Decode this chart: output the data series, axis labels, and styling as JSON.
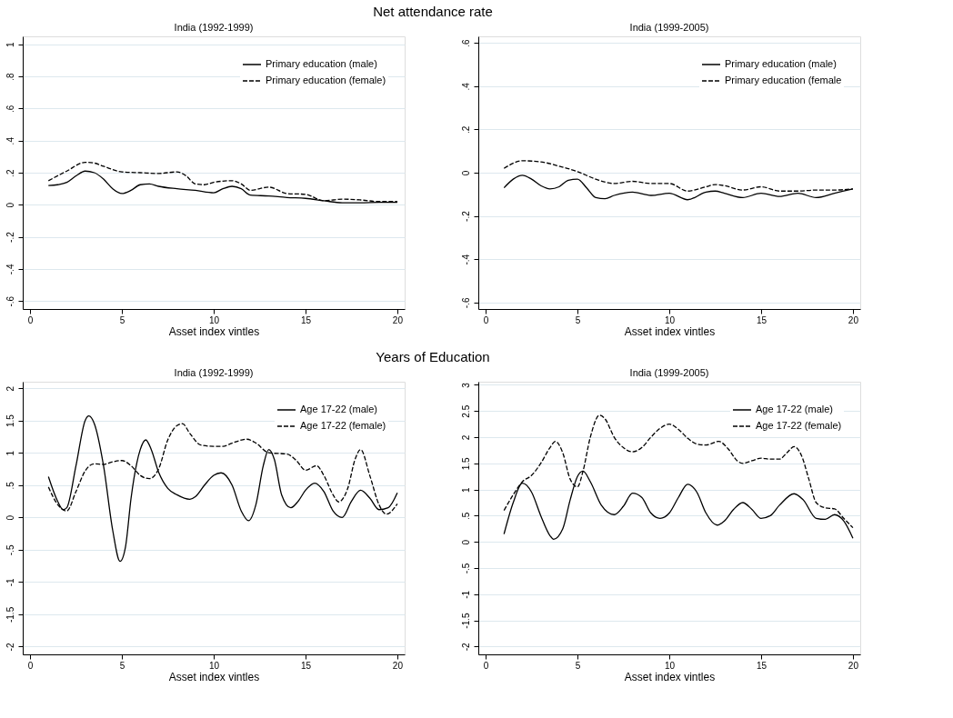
{
  "chart_data": [
    {
      "type": "line",
      "title": "India (1992-1999)",
      "annotations": [
        "Net attendance rate"
      ],
      "xlabel": "Asset index vintles",
      "xlim": [
        -0.4,
        20.4
      ],
      "xticks": [
        0,
        5,
        10,
        15,
        20
      ],
      "ylim": [
        -0.65,
        1.05
      ],
      "yticks": [
        {
          "value": -0.6,
          "label": "-.6"
        },
        {
          "value": -0.4,
          "label": "-.4"
        },
        {
          "value": -0.2,
          "label": "-.2"
        },
        0,
        {
          "value": 0.2,
          "label": ".2"
        },
        {
          "value": 0.4,
          "label": ".4"
        },
        {
          "value": 0.6,
          "label": ".6"
        },
        {
          "value": 0.8,
          "label": ".8"
        },
        1
      ],
      "grid": "y",
      "legend": "top right",
      "series": [
        {
          "name": "Primary education (male)",
          "color": "#000000",
          "line_style": "solid",
          "x": [
            1,
            1.5,
            2,
            2.5,
            3,
            3.5,
            4,
            4.5,
            5,
            5.5,
            6,
            6.5,
            7,
            8,
            9,
            10,
            10.5,
            11,
            11.5,
            12,
            13,
            14,
            15,
            16,
            17,
            18,
            19,
            20
          ],
          "values": [
            0.12,
            0.125,
            0.14,
            0.18,
            0.21,
            0.2,
            0.16,
            0.1,
            0.07,
            0.09,
            0.125,
            0.13,
            0.115,
            0.1,
            0.09,
            0.075,
            0.1,
            0.115,
            0.1,
            0.06,
            0.055,
            0.045,
            0.04,
            0.025,
            0.012,
            0.012,
            0.015,
            0.015
          ]
        },
        {
          "name": "Primary education (female)",
          "color": "#000000",
          "line_style": "dashed",
          "x": [
            1,
            2,
            3,
            3.5,
            4,
            5,
            6,
            7,
            8,
            8.5,
            9,
            9.5,
            10,
            11,
            11.5,
            12,
            13,
            14,
            15,
            16,
            17,
            18,
            19,
            20
          ],
          "values": [
            0.15,
            0.21,
            0.265,
            0.26,
            0.24,
            0.205,
            0.2,
            0.195,
            0.205,
            0.18,
            0.13,
            0.125,
            0.14,
            0.15,
            0.13,
            0.09,
            0.11,
            0.07,
            0.065,
            0.025,
            0.035,
            0.03,
            0.02,
            0.02
          ]
        }
      ]
    },
    {
      "type": "line",
      "title": "India (1999-2005)",
      "xlabel": "Asset index vintles",
      "xlim": [
        -0.4,
        20.4
      ],
      "xticks": [
        0,
        5,
        10,
        15,
        20
      ],
      "ylim": [
        -0.63,
        0.63
      ],
      "yticks": [
        {
          "value": -0.6,
          "label": "-.6"
        },
        {
          "value": -0.4,
          "label": "-.4"
        },
        {
          "value": -0.2,
          "label": "-.2"
        },
        0,
        {
          "value": 0.2,
          "label": ".2"
        },
        {
          "value": 0.4,
          "label": ".4"
        },
        {
          "value": 0.6,
          "label": ".6"
        }
      ],
      "grid": "y",
      "legend": "top right",
      "series": [
        {
          "name": "Primary education (male)",
          "color": "#000000",
          "line_style": "solid",
          "x": [
            1,
            1.5,
            2,
            2.5,
            3,
            3.5,
            4,
            4.5,
            5,
            5.5,
            6,
            6.5,
            7,
            8,
            9,
            10,
            11,
            12,
            12.5,
            13,
            14,
            15,
            16,
            17,
            18,
            19,
            20
          ],
          "values": [
            -0.07,
            -0.03,
            -0.012,
            -0.03,
            -0.06,
            -0.075,
            -0.065,
            -0.035,
            -0.03,
            -0.07,
            -0.115,
            -0.12,
            -0.105,
            -0.09,
            -0.105,
            -0.095,
            -0.125,
            -0.09,
            -0.085,
            -0.095,
            -0.115,
            -0.095,
            -0.11,
            -0.095,
            -0.115,
            -0.095,
            -0.075
          ]
        },
        {
          "name": "Primary education (female",
          "color": "#000000",
          "line_style": "dashed",
          "x": [
            1,
            2,
            3,
            4,
            5,
            6,
            7,
            8,
            9,
            10,
            11,
            12,
            12.5,
            13,
            14,
            15,
            16,
            17,
            18,
            19,
            20
          ],
          "values": [
            0.02,
            0.055,
            0.05,
            0.03,
            0.005,
            -0.03,
            -0.05,
            -0.04,
            -0.05,
            -0.05,
            -0.085,
            -0.065,
            -0.055,
            -0.06,
            -0.08,
            -0.065,
            -0.085,
            -0.085,
            -0.08,
            -0.08,
            -0.075
          ]
        }
      ]
    },
    {
      "type": "line",
      "title": "India (1992-1999)",
      "annotations": [
        "Years of Education"
      ],
      "xlabel": "Asset index vintles",
      "xlim": [
        -0.4,
        20.4
      ],
      "xticks": [
        0,
        5,
        10,
        15,
        20
      ],
      "ylim": [
        -2.12,
        2.1
      ],
      "yticks": [
        -2,
        {
          "value": -1.5,
          "label": "-1.5"
        },
        -1,
        {
          "value": -0.5,
          "label": "-.5"
        },
        0,
        {
          "value": 0.5,
          "label": ".5"
        },
        1,
        {
          "value": 1.5,
          "label": "1.5"
        },
        2
      ],
      "grid": "y",
      "legend": "top right",
      "series": [
        {
          "name": "Age 17-22 (male)",
          "color": "#000000",
          "line_style": "solid",
          "x": [
            1,
            1.5,
            1.8,
            2,
            2.5,
            3,
            3.2,
            3.5,
            4,
            4.5,
            4.9,
            5.2,
            5.5,
            6,
            6.3,
            6.6,
            7,
            7.5,
            8,
            8.7,
            9,
            9.5,
            10,
            10.4,
            11,
            11.5,
            11.9,
            12.3,
            12.7,
            13,
            13.3,
            13.7,
            14.2,
            14.6,
            15,
            15.5,
            16,
            16.5,
            17,
            17.5,
            18,
            18.5,
            19,
            19.5,
            20
          ],
          "values": [
            0.63,
            0.25,
            0.12,
            0.15,
            0.8,
            1.5,
            1.57,
            1.45,
            0.8,
            -0.2,
            -0.68,
            -0.45,
            0.3,
            1.05,
            1.2,
            1.05,
            0.7,
            0.45,
            0.35,
            0.28,
            0.32,
            0.5,
            0.65,
            0.69,
            0.5,
            0.1,
            -0.05,
            0.2,
            0.8,
            1.05,
            0.9,
            0.35,
            0.15,
            0.25,
            0.42,
            0.53,
            0.4,
            0.1,
            0,
            0.25,
            0.42,
            0.3,
            0.12,
            0.15,
            0.38
          ]
        },
        {
          "name": "Age 17-22 (female)",
          "color": "#000000",
          "line_style": "dashed",
          "x": [
            1,
            1.5,
            2,
            2.5,
            3,
            3.5,
            4,
            4.5,
            5,
            5.5,
            6,
            6.5,
            7,
            7.5,
            8,
            8.3,
            8.7,
            9.3,
            10,
            10.5,
            11,
            11.8,
            12.3,
            13,
            14,
            14.5,
            15,
            15.6,
            16,
            16.5,
            16.8,
            17.3,
            17.7,
            18,
            18.5,
            19,
            19.4,
            20
          ],
          "values": [
            0.47,
            0.2,
            0.1,
            0.4,
            0.72,
            0.83,
            0.82,
            0.86,
            0.88,
            0.8,
            0.65,
            0.6,
            0.75,
            1.2,
            1.42,
            1.45,
            1.3,
            1.12,
            1.1,
            1.1,
            1.15,
            1.21,
            1.15,
            1.0,
            0.98,
            0.88,
            0.73,
            0.8,
            0.65,
            0.35,
            0.24,
            0.45,
            0.9,
            1.05,
            0.65,
            0.2,
            0.05,
            0.21
          ]
        }
      ]
    },
    {
      "type": "line",
      "title": "India (1999-2005)",
      "xlabel": "Asset index vintles",
      "xlim": [
        -0.4,
        20.4
      ],
      "xticks": [
        0,
        5,
        10,
        15,
        20
      ],
      "ylim": [
        -2.15,
        3.06
      ],
      "yticks": [
        -2,
        {
          "value": -1.5,
          "label": "-1.5"
        },
        -1,
        {
          "value": -0.5,
          "label": "-.5"
        },
        0,
        {
          "value": 0.5,
          "label": ".5"
        },
        1,
        {
          "value": 1.5,
          "label": "1.5"
        },
        2,
        {
          "value": 2.5,
          "label": "2.5"
        },
        3
      ],
      "grid": "y",
      "legend": "top right",
      "series": [
        {
          "name": "Age 17-22 (male)",
          "color": "#000000",
          "line_style": "solid",
          "x": [
            1,
            1.5,
            2,
            2.5,
            3,
            3.5,
            3.7,
            4.2,
            4.6,
            5,
            5.3,
            5.7,
            6.3,
            7,
            7.5,
            8,
            8.5,
            9,
            9.5,
            10,
            10.5,
            11,
            11.5,
            12,
            12.6,
            13,
            13.5,
            14,
            14.5,
            15,
            15.5,
            16,
            16.8,
            17.3,
            18,
            18.5,
            19,
            19.5,
            20
          ],
          "values": [
            0.15,
            0.75,
            1.12,
            0.95,
            0.5,
            0.12,
            0.05,
            0.25,
            0.8,
            1.25,
            1.35,
            1.15,
            0.7,
            0.52,
            0.68,
            0.93,
            0.85,
            0.55,
            0.45,
            0.55,
            0.85,
            1.1,
            0.95,
            0.55,
            0.32,
            0.4,
            0.62,
            0.75,
            0.62,
            0.45,
            0.5,
            0.7,
            0.92,
            0.8,
            0.45,
            0.43,
            0.52,
            0.4,
            0.07
          ]
        },
        {
          "name": "Age 17-22 (female)",
          "color": "#000000",
          "line_style": "dashed",
          "x": [
            1,
            1.5,
            2,
            2.5,
            3,
            3.5,
            3.8,
            4.2,
            4.6,
            5,
            5.3,
            5.7,
            6.2,
            6.5,
            7,
            7.5,
            8,
            8.5,
            9,
            9.5,
            10,
            10.5,
            11,
            11.5,
            12,
            12.7,
            13.2,
            13.7,
            14,
            14.5,
            15,
            15.5,
            16,
            16.4,
            16.8,
            17.2,
            17.6,
            18,
            18.5,
            19,
            19.5,
            20
          ],
          "values": [
            0.6,
            0.9,
            1.15,
            1.27,
            1.5,
            1.8,
            1.92,
            1.7,
            1.2,
            1.05,
            1.35,
            2.0,
            2.42,
            2.35,
            2.0,
            1.8,
            1.72,
            1.8,
            2.0,
            2.17,
            2.25,
            2.15,
            1.98,
            1.87,
            1.85,
            1.92,
            1.78,
            1.55,
            1.5,
            1.55,
            1.6,
            1.58,
            1.58,
            1.7,
            1.82,
            1.65,
            1.2,
            0.75,
            0.65,
            0.63,
            0.45,
            0.27
          ]
        }
      ]
    }
  ]
}
